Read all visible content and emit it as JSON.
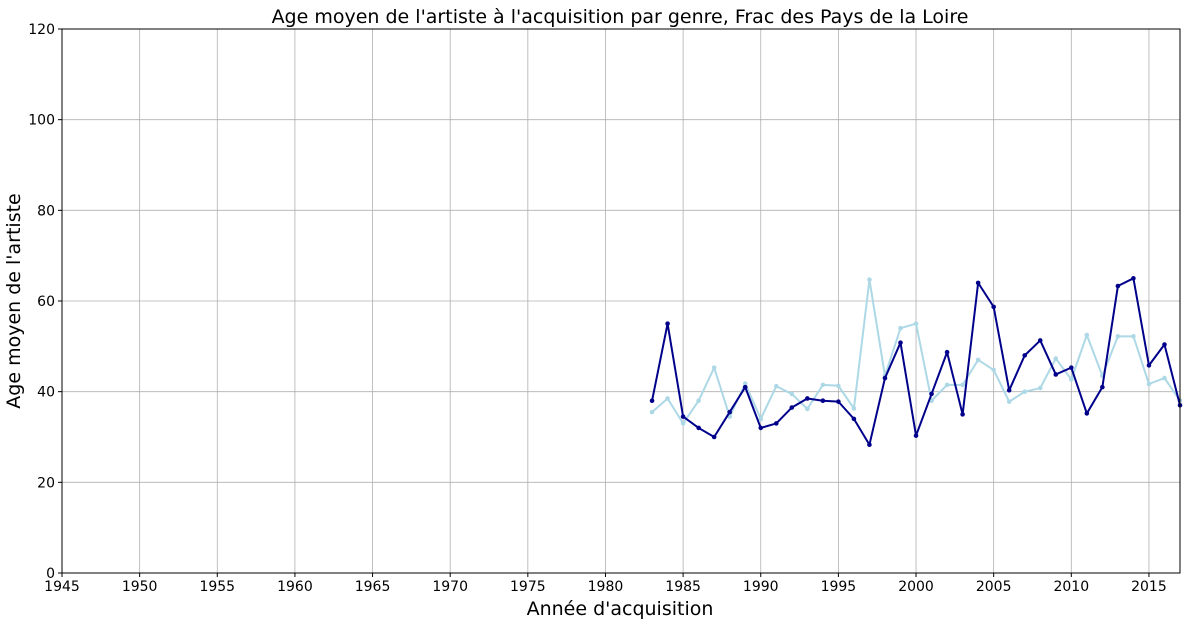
{
  "chart_data": {
    "type": "line",
    "title": "Age moyen de l'artiste à l'acquisition par genre, Frac des Pays de la Loire",
    "xlabel": "Année d'acquisition",
    "ylabel": "Age moyen de l'artiste",
    "xlim": [
      1945,
      2017
    ],
    "ylim": [
      0,
      120
    ],
    "xticks": [
      1945,
      1950,
      1955,
      1960,
      1965,
      1970,
      1975,
      1980,
      1985,
      1990,
      1995,
      2000,
      2005,
      2010,
      2015
    ],
    "yticks": [
      0,
      20,
      40,
      60,
      80,
      100,
      120
    ],
    "grid": true,
    "legend": "none",
    "series": [
      {
        "color": "#00008b",
        "x": [
          1983,
          1984,
          1985,
          1986,
          1987,
          1988,
          1989,
          1990,
          1991,
          1992,
          1993,
          1994,
          1995,
          1996,
          1997,
          1998,
          1999,
          2000,
          2001,
          2002,
          2003,
          2004,
          2005,
          2006,
          2007,
          2008,
          2009,
          2010,
          2011,
          2012,
          2013,
          2014,
          2015,
          2016,
          2017
        ],
        "values": [
          38,
          55,
          34.5,
          32,
          30,
          35.5,
          41,
          32,
          33,
          36.5,
          38.5,
          38,
          37.8,
          34,
          28.3,
          43,
          50.8,
          30.3,
          39.5,
          48.7,
          35,
          64,
          58.7,
          40.3,
          48,
          51.3,
          43.8,
          45.3,
          35.2,
          41,
          63.3,
          65,
          45.8,
          50.4,
          37
        ]
      },
      {
        "color": "#add8e6",
        "x": [
          1983,
          1984,
          1985,
          1986,
          1987,
          1988,
          1989,
          1990,
          1991,
          1992,
          1993,
          1994,
          1995,
          1996,
          1997,
          1998,
          1999,
          2000,
          2001,
          2002,
          2003,
          2004,
          2005,
          2006,
          2007,
          2008,
          2009,
          2010,
          2011,
          2012,
          2013,
          2014,
          2015,
          2016,
          2017
        ],
        "values": [
          35.5,
          38.5,
          33,
          38,
          45.3,
          34.5,
          41.8,
          34,
          41.2,
          39.5,
          36.2,
          41.5,
          41.3,
          36.3,
          64.7,
          43.5,
          54,
          55,
          38,
          41.5,
          41.5,
          47,
          44.8,
          37.8,
          40,
          40.8,
          47.3,
          42.7,
          52.5,
          43.5,
          52.2,
          52.2,
          41.7,
          43,
          38
        ]
      }
    ]
  }
}
